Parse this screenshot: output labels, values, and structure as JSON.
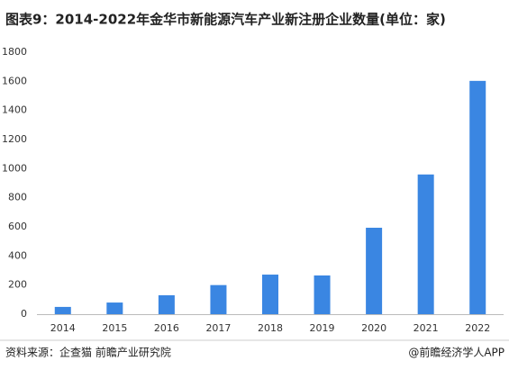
{
  "chart_data": {
    "type": "bar",
    "title": "图表9：2014-2022年金华市新能源汽车产业新注册企业数量(单位：家)",
    "categories": [
      "2014",
      "2015",
      "2016",
      "2017",
      "2018",
      "2019",
      "2020",
      "2021",
      "2022"
    ],
    "values": [
      50,
      80,
      130,
      200,
      272,
      266,
      594,
      960,
      1603
    ],
    "color": "#3a86e2",
    "ylim": [
      0,
      1800
    ],
    "yticks": [
      0,
      200,
      400,
      600,
      800,
      1000,
      1200,
      1400,
      1600,
      1800
    ],
    "grid": false,
    "source": "资料来源：企查猫 前瞻产业研究院",
    "credit": "@前瞻经济学人APP"
  }
}
